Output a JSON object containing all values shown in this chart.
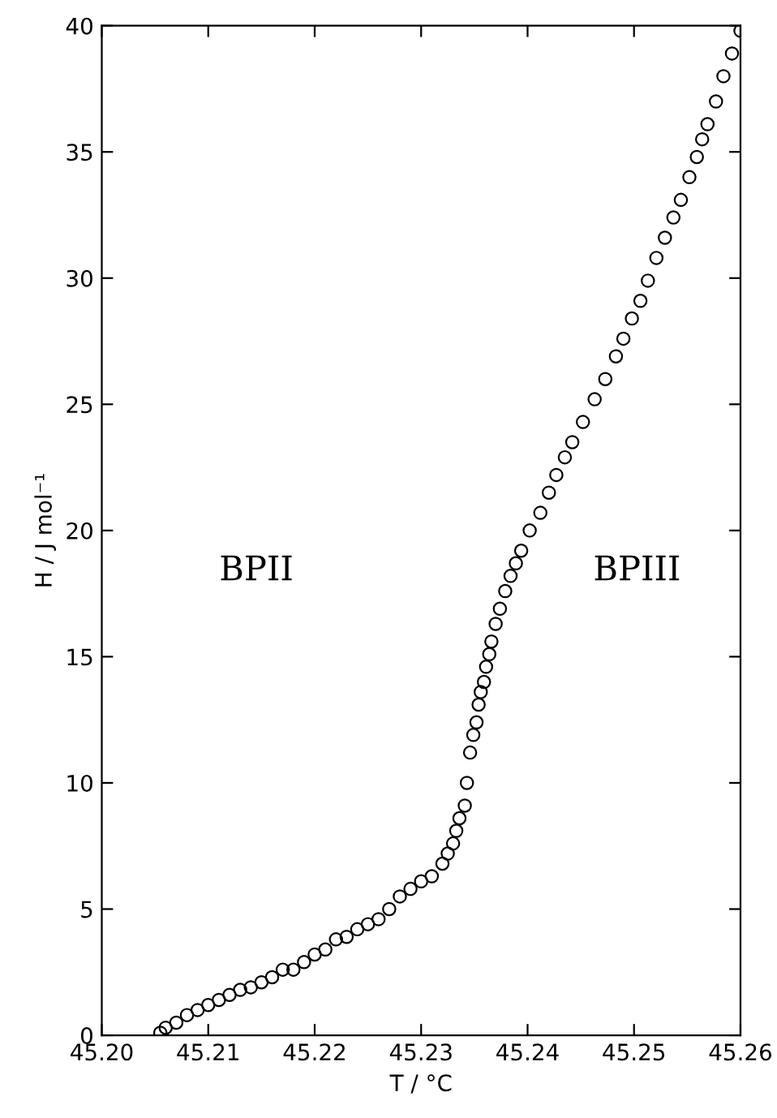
{
  "chart_data": {
    "type": "scatter",
    "xlabel": "T / °C",
    "ylabel": "H / J mol⁻¹",
    "annotations": [
      "BPII",
      "BPIII"
    ],
    "x": [
      45.2055,
      45.206,
      45.207,
      45.208,
      45.209,
      45.21,
      45.211,
      45.212,
      45.213,
      45.214,
      45.215,
      45.216,
      45.217,
      45.218,
      45.219,
      45.22,
      45.221,
      45.222,
      45.223,
      45.224,
      45.225,
      45.226,
      45.227,
      45.228,
      45.229,
      45.23,
      45.231,
      45.232,
      45.2325,
      45.233,
      45.2333,
      45.2336,
      45.2341,
      45.2343,
      45.2346,
      45.2349,
      45.2352,
      45.2354,
      45.2356,
      45.2359,
      45.2361,
      45.2364,
      45.2366,
      45.237,
      45.2374,
      45.2379,
      45.2384,
      45.2389,
      45.2394,
      45.2402,
      45.2412,
      45.242,
      45.2427,
      45.2435,
      45.2442,
      45.2452,
      45.2463,
      45.2473,
      45.2483,
      45.249,
      45.2498,
      45.2506,
      45.2513,
      45.2521,
      45.2529,
      45.2537,
      45.2544,
      45.2552,
      45.2559,
      45.2564,
      45.2569,
      45.2577,
      45.2584,
      45.2592,
      45.26
    ],
    "series": [
      {
        "color": "#000000",
        "values": [
          0.1,
          0.3,
          0.5,
          0.8,
          1.0,
          1.2,
          1.4,
          1.6,
          1.8,
          1.9,
          2.1,
          2.3,
          2.6,
          2.6,
          2.9,
          3.2,
          3.4,
          3.8,
          3.9,
          4.2,
          4.4,
          4.6,
          5.0,
          5.5,
          5.8,
          6.1,
          6.3,
          6.8,
          7.2,
          7.6,
          8.1,
          8.6,
          9.1,
          10.0,
          11.2,
          11.9,
          12.4,
          13.1,
          13.6,
          14.0,
          14.6,
          15.1,
          15.6,
          16.3,
          16.9,
          17.6,
          18.2,
          18.7,
          19.2,
          20.0,
          20.7,
          21.5,
          22.2,
          22.9,
          23.5,
          24.3,
          25.2,
          26.0,
          26.9,
          27.6,
          28.4,
          29.1,
          29.9,
          30.8,
          31.6,
          32.4,
          33.1,
          34.0,
          34.8,
          35.5,
          36.1,
          37.0,
          38.0,
          38.9,
          39.8
        ]
      }
    ],
    "marker": "circle",
    "xlim": [
      45.2,
      45.26
    ],
    "xticks": [
      {
        "value": 45.2,
        "label": "45.20"
      },
      {
        "value": 45.21,
        "label": "45.21"
      },
      {
        "value": 45.22,
        "label": "45.22"
      },
      {
        "value": 45.23,
        "label": "45.23"
      },
      {
        "value": 45.24,
        "label": "45.24"
      },
      {
        "value": 45.25,
        "label": "45.25"
      },
      {
        "value": 45.26,
        "label": "45.26"
      }
    ],
    "ylim": [
      0,
      40
    ],
    "yticks": [
      0,
      5,
      10,
      15,
      20,
      25,
      30,
      35,
      40
    ],
    "grid": false,
    "legend": false
  }
}
